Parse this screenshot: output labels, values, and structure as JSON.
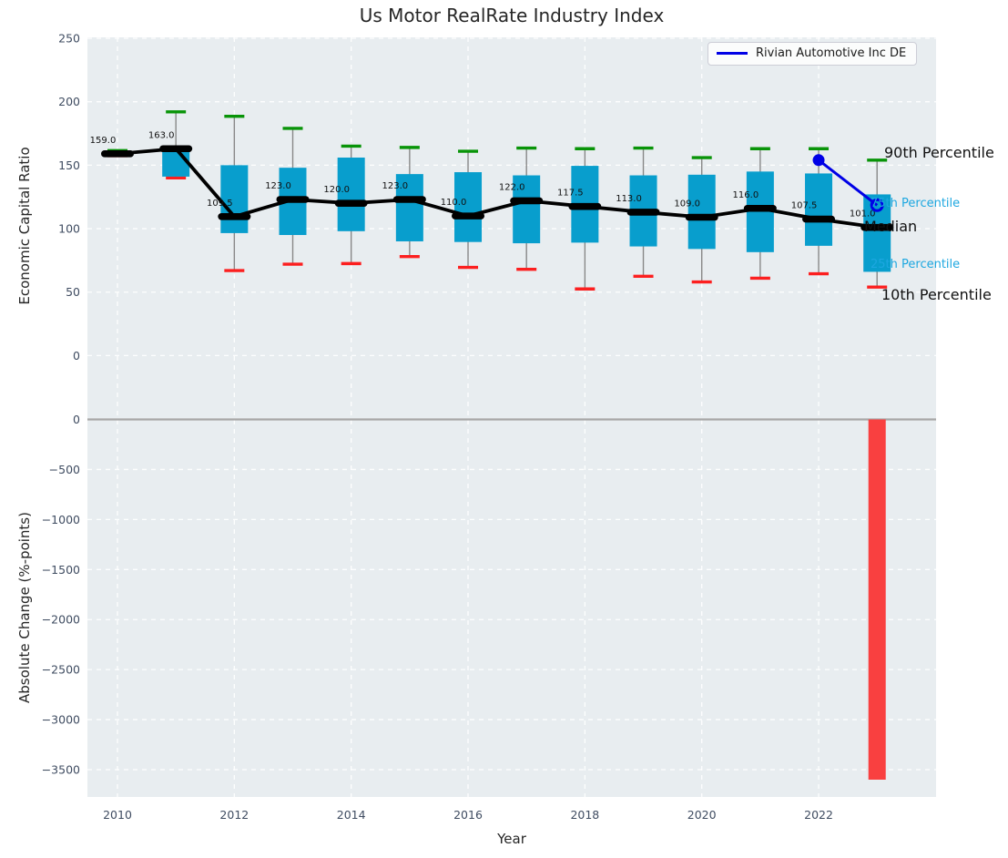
{
  "title": "Us Motor RealRate Industry Index",
  "legend": {
    "label": "Rivian Automotive Inc DE",
    "line_color": "#0000e6"
  },
  "axes": {
    "top": {
      "ylabel": "Economic Capital Ratio",
      "yticks": [
        250,
        200,
        150,
        100,
        50,
        0
      ]
    },
    "bottom": {
      "ylabel": "Absolute Change (%-points)",
      "xlabel": "Year",
      "yticks": [
        0,
        -500,
        -1000,
        -1500,
        -2000,
        -2500,
        -3000,
        -3500
      ],
      "xticks": [
        2010,
        2012,
        2014,
        2016,
        2018,
        2020,
        2022
      ]
    }
  },
  "percentile_labels": {
    "p90": "90th Percentile",
    "p75": "75th Percentile",
    "median": "Median",
    "p25": "25th Percentile",
    "p10": "10th Percentile"
  },
  "colors": {
    "plot_bg": "#e8edf0",
    "grid": "#ffffff",
    "box_fill": "#089ecd",
    "whisker": "#888888",
    "cap_high": "#089408",
    "cap_low": "#fc1f1f",
    "median_line": "#000000",
    "company_line": "#0000e6",
    "change_bar": "#f94040",
    "zero_line": "#a7a7a7",
    "tick_text": "#3f4c61",
    "annotation_text": "#111111",
    "cyan_label": "#1da7e0"
  },
  "chart_data": [
    {
      "type": "boxplot_timeseries",
      "title": "Us Motor RealRate Industry Index",
      "xlabel": "Year",
      "ylabel": "Economic Capital Ratio",
      "ylim": [
        -47,
        250
      ],
      "grid": true,
      "legend_position": "upper right",
      "years": [
        2010,
        2011,
        2012,
        2013,
        2014,
        2015,
        2016,
        2017,
        2018,
        2019,
        2020,
        2021,
        2022,
        2023
      ],
      "median": [
        159.0,
        163.0,
        109.5,
        123.0,
        120.0,
        123.0,
        110.0,
        122.0,
        117.5,
        113.0,
        109.0,
        116.0,
        107.5,
        101.0
      ],
      "p75": [
        160.0,
        163.5,
        150.0,
        148.0,
        156.0,
        143.0,
        144.5,
        142.0,
        149.5,
        142.0,
        142.5,
        145.0,
        143.5,
        127.0
      ],
      "p25": [
        158.0,
        141.0,
        96.5,
        95.0,
        98.0,
        90.0,
        89.5,
        88.5,
        89.0,
        86.0,
        84.0,
        81.5,
        86.5,
        66.0
      ],
      "p90": [
        161.5,
        192.0,
        188.5,
        179.0,
        165.0,
        164.0,
        161.0,
        163.5,
        163.0,
        163.5,
        156.0,
        163.0,
        163.0,
        154.0
      ],
      "p10": [
        157.5,
        140.0,
        67.0,
        72.0,
        72.5,
        78.0,
        69.5,
        68.0,
        52.5,
        62.5,
        58.0,
        61.0,
        64.5,
        54.0
      ],
      "series": [
        {
          "name": "Rivian Automotive Inc DE",
          "x": [
            2022,
            2023
          ],
          "values": [
            154.0,
            118.5
          ]
        }
      ]
    },
    {
      "type": "bar",
      "xlabel": "Year",
      "ylabel": "Absolute Change (%-points)",
      "ylim": [
        -3770,
        55
      ],
      "grid": true,
      "bars": [
        {
          "x": 2023,
          "value": -3600
        }
      ]
    }
  ]
}
